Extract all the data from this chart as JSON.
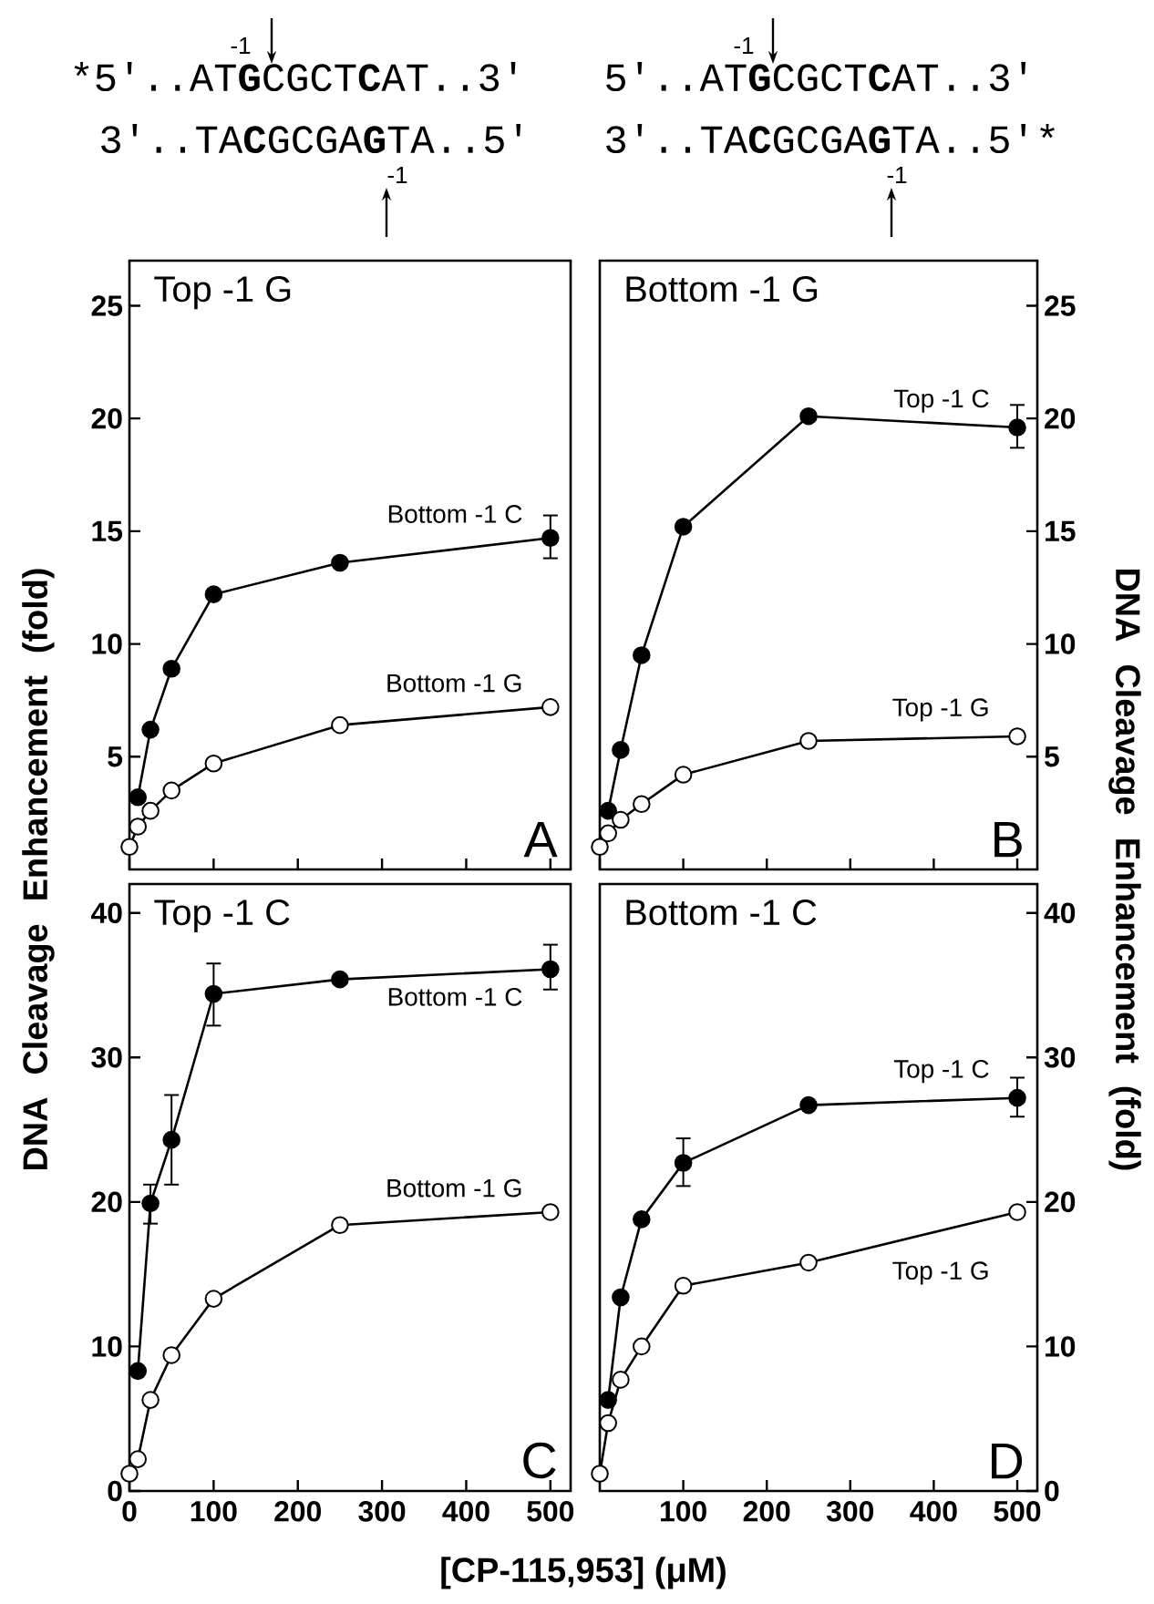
{
  "chart_data": [
    {
      "type": "line",
      "title": "Top -1 G",
      "ylabel": "DNA Cleavage Enhancement (fold)",
      "xlim": [
        0,
        524
      ],
      "ylim": [
        0,
        27
      ],
      "xticks": [
        0,
        100,
        200,
        300,
        400,
        500
      ],
      "yticks": [
        5,
        10,
        15,
        20,
        25
      ],
      "tick_labels": "y",
      "marker": "circle",
      "annotations": [
        "A",
        "*5'..AT**G**CGCT**C**AT..3'",
        "3'..TA**C**GCGA**G**TA..5'",
        "-1",
        "-1"
      ],
      "series": [
        {
          "name": "Bottom -1 C",
          "color": "#000000",
          "x": [
            10,
            25,
            50,
            100,
            250,
            500
          ],
          "values": [
            3.2,
            6.2,
            8.9,
            12.2,
            13.6,
            14.7
          ],
          "errors": [
            null,
            null,
            null,
            null,
            null,
            [
              13.8,
              15.7
            ]
          ]
        },
        {
          "name": "Bottom -1 G",
          "color": "#ffffff",
          "x": [
            0,
            10,
            25,
            50,
            100,
            250,
            500
          ],
          "values": [
            1.0,
            1.9,
            2.6,
            3.5,
            4.7,
            6.4,
            7.2
          ]
        }
      ]
    },
    {
      "type": "line",
      "title": "Bottom -1 G",
      "y2label": "DNA Cleavage Enhancement (fold)",
      "xlim": [
        0,
        524
      ],
      "y2lim": [
        0,
        27
      ],
      "xticks": [
        0,
        100,
        200,
        300,
        400,
        500
      ],
      "y2ticks": [
        5,
        10,
        15,
        20,
        25
      ],
      "tick_labels": "y",
      "marker": "circle",
      "annotations": [
        "B",
        "5'..AT**G**CGCT**C**AT..3'",
        "3'..TA**C**GCGA**G**TA..5'*",
        "-1",
        "-1"
      ],
      "series": [
        {
          "name": "Top -1 C",
          "color": "#000000",
          "axis": "y2",
          "x": [
            10,
            25,
            50,
            100,
            250,
            500
          ],
          "values": [
            2.6,
            5.3,
            9.5,
            15.2,
            20.1,
            19.6
          ],
          "errors": [
            null,
            null,
            null,
            null,
            null,
            [
              18.7,
              20.6
            ]
          ]
        },
        {
          "name": "Top -1 G",
          "color": "#ffffff",
          "axis": "y2",
          "x": [
            0,
            10,
            25,
            50,
            100,
            250,
            500
          ],
          "values": [
            1.0,
            1.6,
            2.2,
            2.9,
            4.2,
            5.7,
            5.9
          ]
        }
      ]
    },
    {
      "type": "line",
      "title": "Top -1 C",
      "xlabel": "[CP-115,953] (μM)",
      "xlim": [
        0,
        524
      ],
      "ylim": [
        0,
        42
      ],
      "xticks": [
        0,
        100,
        200,
        300,
        400,
        500
      ],
      "yticks": [
        0,
        10,
        20,
        30,
        40
      ],
      "marker": "circle",
      "annotations": [
        "C"
      ],
      "series": [
        {
          "name": "Bottom -1 C",
          "color": "#000000",
          "x": [
            10,
            25,
            50,
            100,
            250,
            500
          ],
          "values": [
            8.3,
            19.9,
            24.3,
            34.4,
            35.4,
            36.1
          ],
          "errors": [
            null,
            [
              18.5,
              21.2
            ],
            [
              21.2,
              27.4
            ],
            [
              32.2,
              36.5
            ],
            null,
            [
              34.7,
              37.8
            ]
          ]
        },
        {
          "name": "Bottom -1 G",
          "color": "#ffffff",
          "x": [
            0,
            10,
            25,
            50,
            100,
            250,
            500
          ],
          "values": [
            1.2,
            2.2,
            6.3,
            9.4,
            13.3,
            18.4,
            19.3
          ]
        }
      ]
    },
    {
      "type": "line",
      "title": "Bottom -1 C",
      "xlim": [
        0,
        524
      ],
      "y2lim": [
        0,
        42
      ],
      "xticks": [
        100,
        200,
        300,
        400,
        500
      ],
      "y2ticks": [
        0,
        10,
        20,
        30,
        40
      ],
      "marker": "circle",
      "annotations": [
        "D"
      ],
      "series": [
        {
          "name": "Top -1 C",
          "color": "#000000",
          "axis": "y2",
          "x": [
            10,
            25,
            50,
            100,
            250,
            500
          ],
          "values": [
            6.3,
            13.4,
            18.8,
            22.7,
            26.7,
            27.2
          ],
          "errors": [
            null,
            null,
            null,
            [
              21.1,
              24.4
            ],
            null,
            [
              25.9,
              28.6
            ]
          ]
        },
        {
          "name": "Top -1 G",
          "color": "#ffffff",
          "axis": "y2",
          "x": [
            0,
            10,
            25,
            50,
            100,
            250,
            500
          ],
          "values": [
            1.2,
            4.7,
            7.7,
            10.0,
            14.2,
            15.8,
            19.3
          ]
        }
      ]
    }
  ]
}
